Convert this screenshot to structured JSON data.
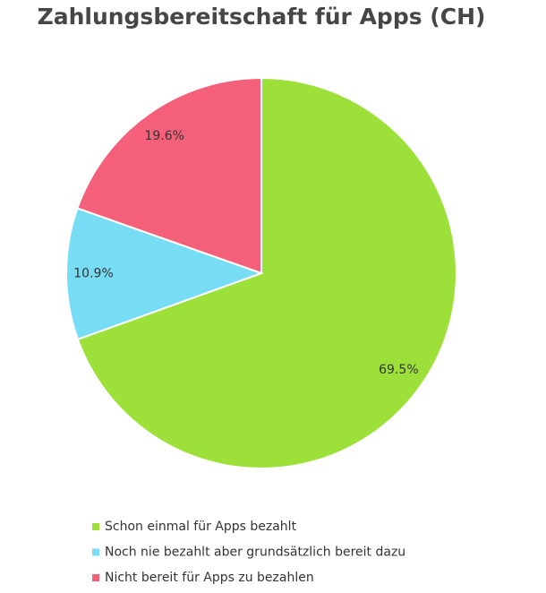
{
  "chart_data": {
    "type": "pie",
    "title": "Zahlungsbereitschaft für Apps (CH)",
    "categories": [
      "Schon einmal für Apps bezahlt",
      "Noch nie bezahlt aber grundsätzlich bereit dazu",
      "Nicht bereit für Apps zu bezahlen"
    ],
    "values": [
      69.5,
      10.9,
      19.6
    ],
    "value_labels": [
      "69.5%",
      "10.9%",
      "19.6%"
    ],
    "colors": [
      "#9de03a",
      "#77ddf5",
      "#f4607a"
    ],
    "legend": "bottom"
  }
}
